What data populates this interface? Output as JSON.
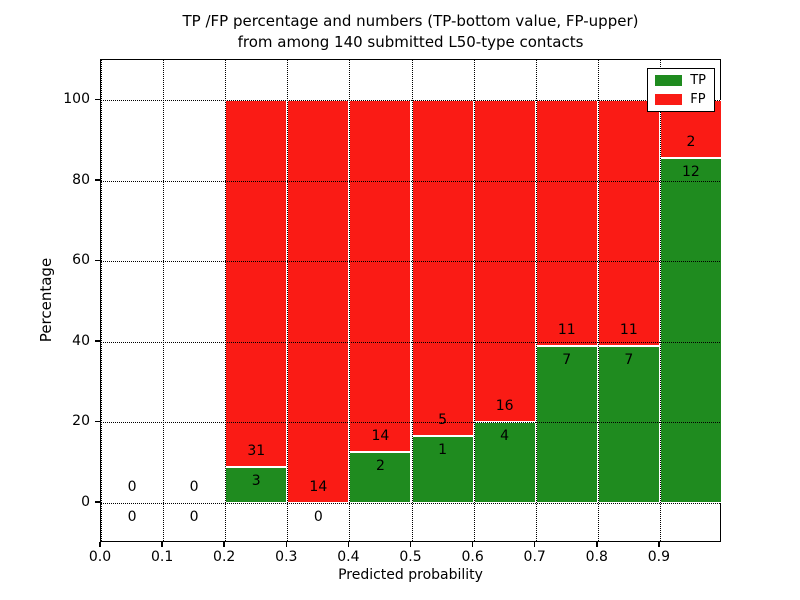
{
  "figure": {
    "title_line1": "TP /FP percentage and numbers (TP-bottom value, FP-upper)",
    "title_line2": "from among 140 submitted L50-type contacts"
  },
  "axes": {
    "xlabel": "Predicted probability",
    "ylabel": "Percentage",
    "x_tick_labels": [
      "0.0",
      "0.1",
      "0.2",
      "0.3",
      "0.4",
      "0.5",
      "0.6",
      "0.7",
      "0.8",
      "0.9"
    ],
    "y_tick_labels": [
      "0",
      "20",
      "40",
      "60",
      "80",
      "100"
    ]
  },
  "legend": {
    "items": [
      {
        "label": "TP",
        "color": "#1f8b1f"
      },
      {
        "label": "FP",
        "color": "#fa1b15"
      }
    ]
  },
  "colors": {
    "tp_green": "#1f8b1f",
    "fp_red": "#fa1b15",
    "background": "#ffffff",
    "text": "#000000"
  },
  "chart_data": {
    "type": "bar",
    "stacked": true,
    "title": "TP /FP percentage and numbers (TP-bottom value, FP-upper) from among 140 submitted L50-type contacts",
    "xlabel": "Predicted probability",
    "ylabel": "Percentage",
    "xlim": [
      0.0,
      1.0
    ],
    "ylim": [
      -10,
      110
    ],
    "x_ticks": [
      0.0,
      0.1,
      0.2,
      0.3,
      0.4,
      0.5,
      0.6,
      0.7,
      0.8,
      0.9
    ],
    "y_ticks": [
      0,
      20,
      40,
      60,
      80,
      100
    ],
    "grid": "dotted",
    "legend_position": "upper right",
    "total_contacts": 140,
    "bin_width": 0.1,
    "series": [
      {
        "name": "TP",
        "color": "#1f8b1f"
      },
      {
        "name": "FP",
        "color": "#fa1b15"
      }
    ],
    "bins": [
      {
        "x0": 0.0,
        "x1": 0.1,
        "tp": 0,
        "fp": 0,
        "tp_pct": 0
      },
      {
        "x0": 0.1,
        "x1": 0.2,
        "tp": 0,
        "fp": 0,
        "tp_pct": 0
      },
      {
        "x0": 0.2,
        "x1": 0.3,
        "tp": 3,
        "fp": 31,
        "tp_pct": 8.82
      },
      {
        "x0": 0.3,
        "x1": 0.4,
        "tp": 0,
        "fp": 14,
        "tp_pct": 0
      },
      {
        "x0": 0.4,
        "x1": 0.5,
        "tp": 2,
        "fp": 14,
        "tp_pct": 12.5
      },
      {
        "x0": 0.5,
        "x1": 0.6,
        "tp": 1,
        "fp": 5,
        "tp_pct": 16.67
      },
      {
        "x0": 0.6,
        "x1": 0.7,
        "tp": 4,
        "fp": 16,
        "tp_pct": 20.0
      },
      {
        "x0": 0.7,
        "x1": 0.8,
        "tp": 7,
        "fp": 11,
        "tp_pct": 38.89
      },
      {
        "x0": 0.8,
        "x1": 0.9,
        "tp": 7,
        "fp": 11,
        "tp_pct": 38.89
      },
      {
        "x0": 0.9,
        "x1": 1.0,
        "tp": 12,
        "fp": 2,
        "tp_pct": 85.71
      }
    ]
  }
}
